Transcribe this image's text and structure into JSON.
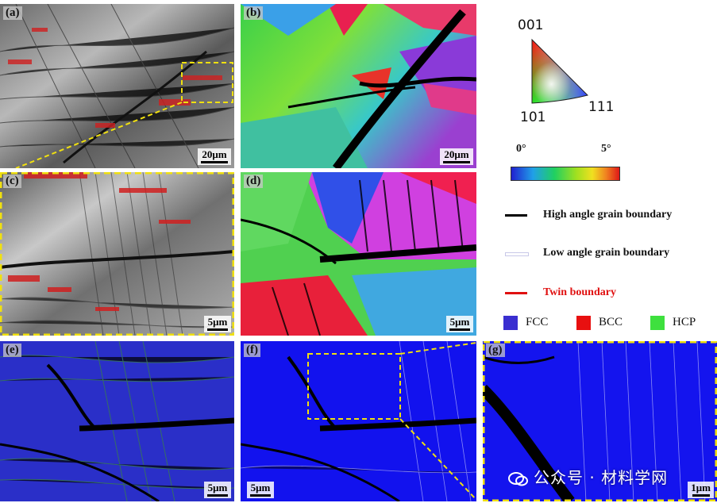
{
  "panels": {
    "a": {
      "tag": "(a)",
      "scale": "20μm"
    },
    "b": {
      "tag": "(b)",
      "scale": "20μm"
    },
    "c": {
      "tag": "(c)",
      "scale": "5μm"
    },
    "d": {
      "tag": "(d)",
      "scale": "5μm"
    },
    "e": {
      "tag": "(e)",
      "scale": "5μm"
    },
    "f": {
      "tag": "(f)",
      "scale": "5μm"
    },
    "g": {
      "tag": "(g)",
      "scale": "1μm"
    }
  },
  "ipf": {
    "pole_top": "001",
    "pole_left": "101",
    "pole_right": "111"
  },
  "colorbar": {
    "min": "0°",
    "max": "5°"
  },
  "legend": {
    "high_angle": "High angle grain boundary",
    "low_angle": "Low angle grain boundary",
    "twin": "Twin boundary",
    "high_angle_color": "#000000",
    "low_angle_color": "#ffffff",
    "twin_color": "#e01010"
  },
  "phases": [
    {
      "label": "FCC",
      "color": "#3a2fd0"
    },
    {
      "label": "BCC",
      "color": "#e81010"
    },
    {
      "label": "HCP",
      "color": "#3ee03e"
    }
  ],
  "watermark": "公众号 · 材料学网"
}
